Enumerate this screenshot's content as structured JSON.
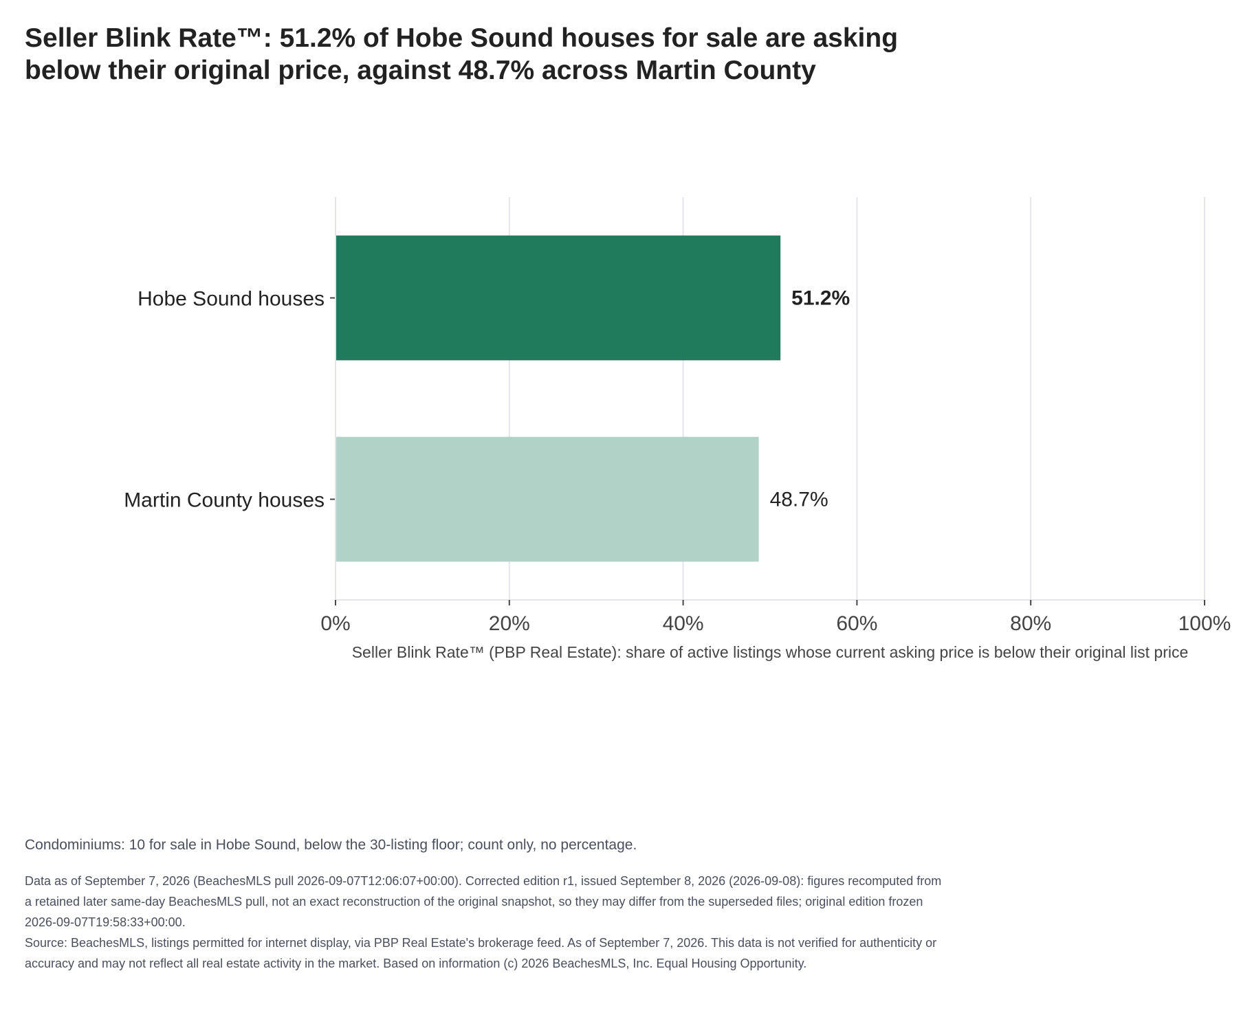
{
  "title": "Seller Blink Rate™: 51.2% of Hobe Sound houses for sale are asking below their original price, against 48.7% across Martin County",
  "chart_data": {
    "type": "bar",
    "orientation": "horizontal",
    "categories": [
      "Hobe Sound houses",
      "Martin County houses"
    ],
    "values": [
      51.2,
      48.7
    ],
    "value_labels": [
      "51.2%",
      "48.7%"
    ],
    "bar_colors": [
      "#207b5c",
      "#b1d2c7"
    ],
    "xlabel": "Seller Blink Rate™ (PBP Real Estate): share of active listings whose current asking price is below their original list price",
    "ylabel": "",
    "xlim": [
      0,
      100
    ],
    "xticks": [
      0,
      20,
      40,
      60,
      80,
      100
    ],
    "xtick_labels": [
      "0%",
      "20%",
      "40%",
      "60%",
      "80%",
      "100%"
    ],
    "grid": true,
    "legend": "none"
  },
  "note": "Condominiums: 10 for sale in Hobe Sound, below the 30-listing floor; count only, no percentage.",
  "footer": {
    "data_note": "Data as of September 7, 2026 (BeachesMLS pull 2026-09-07T12:06:07+00:00). Corrected edition r1, issued September 8, 2026 (2026-09-08): figures recomputed from a retained later same-day BeachesMLS pull, not an exact reconstruction of the original snapshot, so they may differ from the superseded files; original edition frozen 2026-09-07T19:58:33+00:00.",
    "source": "Source: BeachesMLS, listings permitted for internet display, via PBP Real Estate's brokerage feed. As of September 7, 2026. This data is not verified for authenticity or accuracy and may not reflect all real estate activity in the market. Based on information (c) 2026 BeachesMLS, Inc. Equal Housing Opportunity."
  }
}
